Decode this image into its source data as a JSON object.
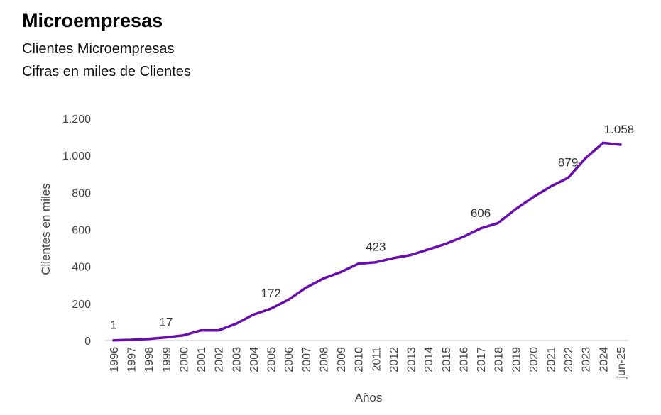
{
  "header": {
    "title": "Microempresas",
    "subtitle1": "Clientes Microempresas",
    "subtitle2": "Cifras en miles de Clientes"
  },
  "colors": {
    "line": "#6a0dad",
    "axis": "#d0d0d0",
    "text": "#444444"
  },
  "chart_data": {
    "type": "line",
    "title": "Microempresas",
    "subtitle": "Clientes Microempresas — Cifras en miles de Clientes",
    "xlabel": "Años",
    "ylabel": "Clientes en miles",
    "ylim": [
      0,
      1200
    ],
    "yticks": [
      0,
      200,
      400,
      600,
      800,
      1000,
      1200
    ],
    "ytick_labels": [
      "0",
      "200",
      "400",
      "600",
      "800",
      "1.000",
      "1.200"
    ],
    "grid": false,
    "categories": [
      "1996",
      "1997",
      "1998",
      "1999",
      "2000",
      "2001",
      "2002",
      "2003",
      "2004",
      "2005",
      "2006",
      "2007",
      "2008",
      "2009",
      "2010",
      "2011",
      "2012",
      "2013",
      "2014",
      "2015",
      "2016",
      "2017",
      "2018",
      "2019",
      "2020",
      "2021",
      "2022",
      "2023",
      "2024",
      "jun-25"
    ],
    "series": [
      {
        "name": "Clientes Microempresas",
        "values": [
          1,
          4,
          9,
          17,
          28,
          55,
          55,
          90,
          140,
          172,
          220,
          285,
          335,
          370,
          415,
          423,
          445,
          462,
          492,
          522,
          560,
          606,
          635,
          710,
          775,
          832,
          879,
          985,
          1068,
          1058
        ]
      }
    ],
    "data_labels": [
      {
        "index": 0,
        "text": "1"
      },
      {
        "index": 3,
        "text": "17"
      },
      {
        "index": 9,
        "text": "172"
      },
      {
        "index": 15,
        "text": "423"
      },
      {
        "index": 21,
        "text": "606"
      },
      {
        "index": 26,
        "text": "879"
      },
      {
        "index": 29,
        "text": "1.058"
      }
    ]
  }
}
